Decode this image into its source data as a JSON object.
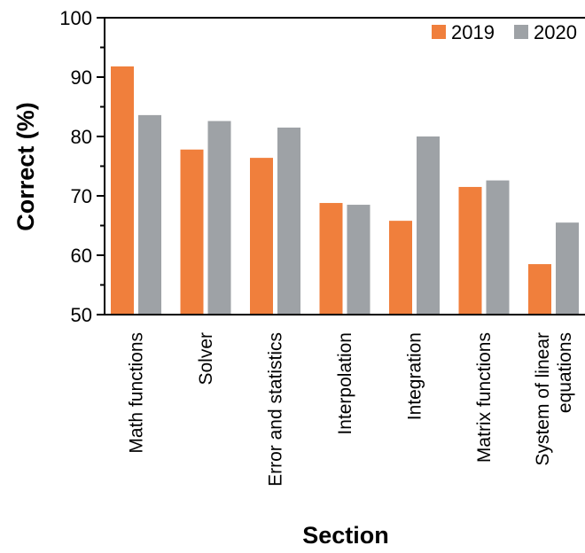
{
  "chart_data": {
    "type": "bar",
    "xlabel": "Section",
    "ylabel": "Correct (%)",
    "ylim": [
      50,
      100
    ],
    "yticks": [
      50,
      60,
      70,
      80,
      90,
      100
    ],
    "categories": [
      [
        "Math functions"
      ],
      [
        "Solver"
      ],
      [
        "Error and statistics"
      ],
      [
        "Interpolation"
      ],
      [
        "Integration"
      ],
      [
        "Matrix functions"
      ],
      [
        "System of linear",
        "equations"
      ]
    ],
    "series": [
      {
        "name": "2019",
        "color": "#F07F3C",
        "values": [
          91.8,
          77.8,
          76.4,
          68.8,
          65.8,
          71.5,
          58.5
        ]
      },
      {
        "name": "2020",
        "color": "#9EA2A6",
        "values": [
          83.6,
          82.6,
          81.5,
          68.5,
          80.0,
          72.6,
          65.5
        ]
      }
    ],
    "legend_position": "top-right",
    "grid": false
  }
}
